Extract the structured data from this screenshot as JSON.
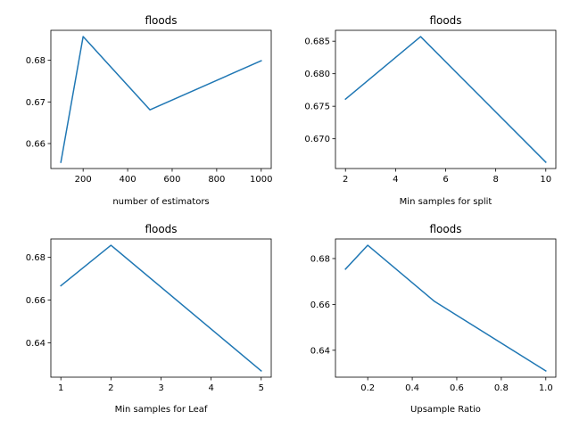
{
  "chart_data": [
    {
      "type": "line",
      "title": "floods",
      "xlabel": "number of estimators",
      "ylabel": "",
      "x": [
        100,
        200,
        500,
        1000
      ],
      "series": [
        {
          "values": [
            0.6555,
            0.6857,
            0.6681,
            0.6799
          ],
          "color": "#1f77b4"
        }
      ],
      "xlim": [
        55,
        1045
      ],
      "ylim": [
        0.654,
        0.6872
      ],
      "xticks": [
        200,
        400,
        600,
        800,
        1000
      ],
      "xtick_labels": [
        "200",
        "400",
        "600",
        "800",
        "1000"
      ],
      "yticks": [
        0.66,
        0.67,
        0.68
      ],
      "ytick_labels": [
        "0.66",
        "0.67",
        "0.68"
      ],
      "grid": false
    },
    {
      "type": "line",
      "title": "floods",
      "xlabel": "Min samples for split",
      "ylabel": "",
      "x": [
        2,
        5,
        10
      ],
      "series": [
        {
          "values": [
            0.6761,
            0.6857,
            0.6664
          ],
          "color": "#1f77b4"
        }
      ],
      "xlim": [
        1.6,
        10.4
      ],
      "ylim": [
        0.66543,
        0.68667
      ],
      "xticks": [
        2,
        4,
        6,
        8,
        10
      ],
      "xtick_labels": [
        "2",
        "4",
        "6",
        "8",
        "10"
      ],
      "yticks": [
        0.67,
        0.675,
        0.68,
        0.685
      ],
      "ytick_labels": [
        "0.670",
        "0.675",
        "0.680",
        "0.685"
      ],
      "grid": false
    },
    {
      "type": "line",
      "title": "floods",
      "xlabel": "Min samples for Leaf",
      "ylabel": "",
      "x": [
        1,
        2,
        5
      ],
      "series": [
        {
          "values": [
            0.6667,
            0.6857,
            0.6268
          ],
          "color": "#1f77b4"
        }
      ],
      "xlim": [
        0.8,
        5.2
      ],
      "ylim": [
        0.62386,
        0.68864
      ],
      "xticks": [
        1,
        2,
        3,
        4,
        5
      ],
      "xtick_labels": [
        "1",
        "2",
        "3",
        "4",
        "5"
      ],
      "yticks": [
        0.64,
        0.66,
        0.68
      ],
      "ytick_labels": [
        "0.64",
        "0.66",
        "0.68"
      ],
      "grid": false
    },
    {
      "type": "line",
      "title": "floods",
      "xlabel": "Upsample Ratio",
      "ylabel": "",
      "x": [
        0.1,
        0.2,
        0.5,
        1.0
      ],
      "series": [
        {
          "values": [
            0.6754,
            0.6858,
            0.6613,
            0.631
          ],
          "color": "#1f77b4"
        }
      ],
      "xlim": [
        0.055,
        1.045
      ],
      "ylim": [
        0.62826,
        0.68854
      ],
      "xticks": [
        0.2,
        0.4,
        0.6,
        0.8,
        1.0
      ],
      "xtick_labels": [
        "0.2",
        "0.4",
        "0.6",
        "0.8",
        "1.0"
      ],
      "yticks": [
        0.64,
        0.66,
        0.68
      ],
      "ytick_labels": [
        "0.64",
        "0.66",
        "0.68"
      ],
      "grid": false
    }
  ]
}
